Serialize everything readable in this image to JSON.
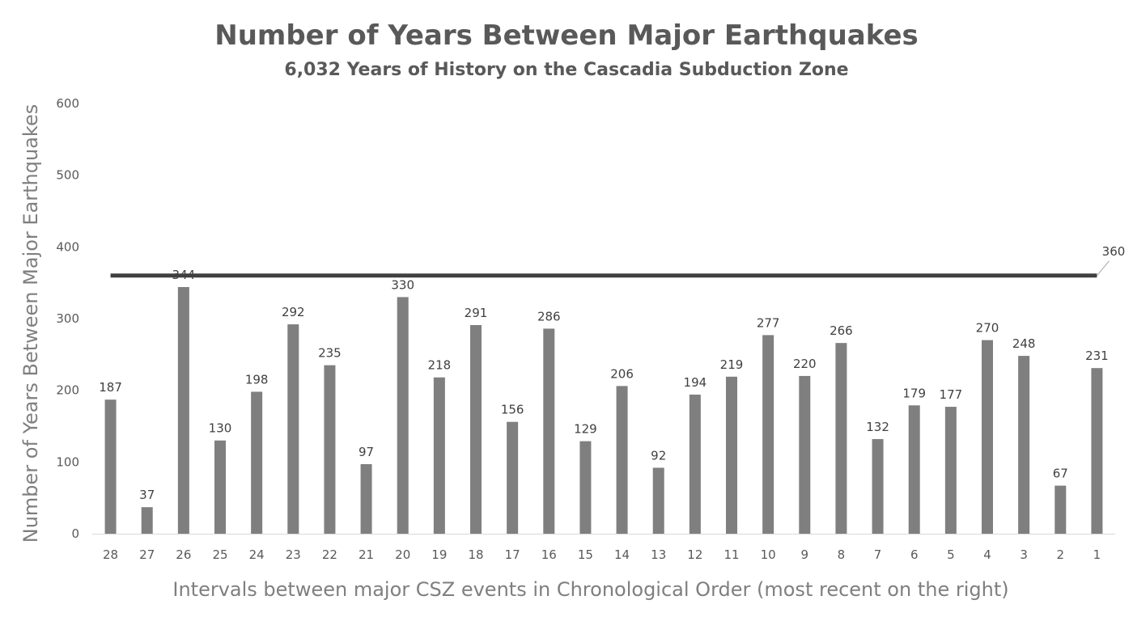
{
  "chart_data": {
    "type": "bar",
    "title": "Number of Years Between Major Earthquakes",
    "subtitle": "6,032 Years of History on the Cascadia Subduction Zone",
    "xlabel": "Intervals between major CSZ events in Chronological Order (most recent on the right)",
    "ylabel": "Number of Years Between Major Earthquakes",
    "ylim": [
      0,
      600
    ],
    "yticks": [
      0,
      100,
      200,
      300,
      400,
      500,
      600
    ],
    "grid": false,
    "legend": "none",
    "categories": [
      "28",
      "27",
      "26",
      "25",
      "24",
      "23",
      "22",
      "21",
      "20",
      "19",
      "18",
      "17",
      "16",
      "15",
      "14",
      "13",
      "12",
      "11",
      "10",
      "9",
      "8",
      "7",
      "6",
      "5",
      "4",
      "3",
      "2",
      "1"
    ],
    "series": [
      {
        "values": [
          187,
          37,
          344,
          130,
          198,
          292,
          235,
          97,
          330,
          218,
          291,
          156,
          286,
          129,
          206,
          92,
          194,
          219,
          277,
          220,
          266,
          132,
          179,
          177,
          270,
          248,
          67,
          231
        ],
        "color": "#7f7f7f"
      }
    ],
    "reference_line": {
      "value": 360,
      "label": "360",
      "color": "#404040"
    }
  }
}
